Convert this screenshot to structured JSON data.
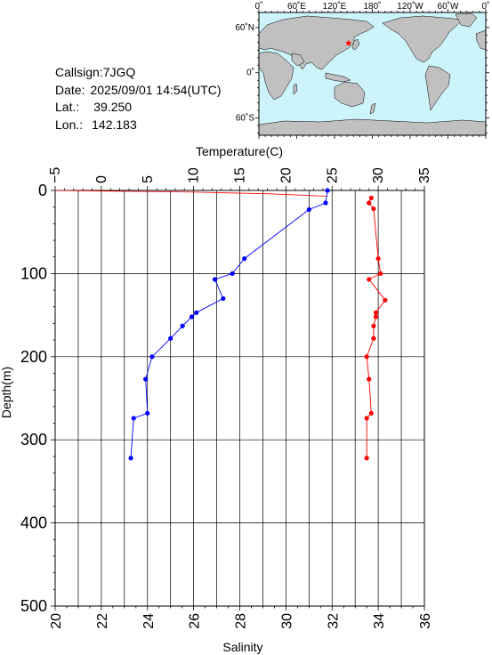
{
  "station": {
    "callsign_label": "Callsign:",
    "callsign": "7JGQ",
    "date_label": "Date:",
    "date": "2025/09/01 14:54(UTC)",
    "lat_label": "Lat.:",
    "lat": "39.250",
    "lon_label": "Lon.:",
    "lon": "142.183"
  },
  "map": {
    "top_labels": [
      "0˚",
      "60˚E",
      "120˚E",
      "180˚",
      "120˚W",
      "60˚W",
      "0˚"
    ],
    "left_labels": [
      "60˚N",
      "0˚",
      "60˚S"
    ],
    "ocean_color": "#cdf4fb",
    "land_color": "#c0c0c0",
    "marker_color": "#ff0000",
    "marker_lat": 39.25,
    "marker_lon": 142.183
  },
  "chart_data": {
    "type": "line",
    "xlabel_top": "Temperature(C)",
    "xlabel_bottom": "Salinity",
    "ylabel": "Depth(m)",
    "temperature_axis": {
      "range": [
        -5,
        35
      ],
      "ticks": [
        "−5",
        "0",
        "5",
        "10",
        "15",
        "20",
        "25",
        "30",
        "35"
      ]
    },
    "salinity_axis": {
      "range": [
        20,
        36
      ],
      "ticks": [
        "20",
        "22",
        "24",
        "26",
        "28",
        "30",
        "32",
        "34",
        "36"
      ]
    },
    "depth_axis": {
      "range": [
        0,
        500
      ],
      "inverted": true,
      "ticks": [
        "0",
        "100",
        "200",
        "300",
        "400",
        "500"
      ]
    },
    "grid": true,
    "series": [
      {
        "color": "#0000ff",
        "axis": "temperature",
        "points": [
          {
            "value": 24.5,
            "depth": 0
          },
          {
            "value": 24.3,
            "depth": 15
          },
          {
            "value": 22.5,
            "depth": 23
          },
          {
            "value": 15.5,
            "depth": 82
          },
          {
            "value": 14.2,
            "depth": 100
          },
          {
            "value": 12.3,
            "depth": 107
          },
          {
            "value": 13.2,
            "depth": 130
          },
          {
            "value": 10.3,
            "depth": 147
          },
          {
            "value": 9.8,
            "depth": 152
          },
          {
            "value": 8.8,
            "depth": 163
          },
          {
            "value": 7.5,
            "depth": 178
          },
          {
            "value": 5.5,
            "depth": 200
          },
          {
            "value": 4.8,
            "depth": 227
          },
          {
            "value": 5.0,
            "depth": 268
          },
          {
            "value": 3.5,
            "depth": 274
          },
          {
            "value": 3.2,
            "depth": 322
          }
        ]
      },
      {
        "color": "#ff0000",
        "axis": "salinity",
        "points": [
          {
            "value": 33.7,
            "depth": 9
          },
          {
            "value": 33.6,
            "depth": 15
          },
          {
            "value": 33.8,
            "depth": 22
          },
          {
            "value": 34.0,
            "depth": 82
          },
          {
            "value": 34.1,
            "depth": 100
          },
          {
            "value": 33.6,
            "depth": 107
          },
          {
            "value": 34.3,
            "depth": 132
          },
          {
            "value": 33.9,
            "depth": 147
          },
          {
            "value": 33.9,
            "depth": 152
          },
          {
            "value": 33.8,
            "depth": 163
          },
          {
            "value": 33.8,
            "depth": 178
          },
          {
            "value": 33.5,
            "depth": 200
          },
          {
            "value": 33.6,
            "depth": 227
          },
          {
            "value": 33.7,
            "depth": 268
          },
          {
            "value": 33.5,
            "depth": 274
          },
          {
            "value": 33.5,
            "depth": 322
          }
        ]
      }
    ],
    "surface_trace": {
      "color": "#ff0000",
      "axis": "temperature",
      "points": [
        {
          "value": -5,
          "depth": 0
        },
        {
          "value": 2,
          "depth": 1
        },
        {
          "value": 10,
          "depth": 2
        },
        {
          "value": 18,
          "depth": 4
        },
        {
          "value": 24.5,
          "depth": 7
        }
      ]
    }
  }
}
